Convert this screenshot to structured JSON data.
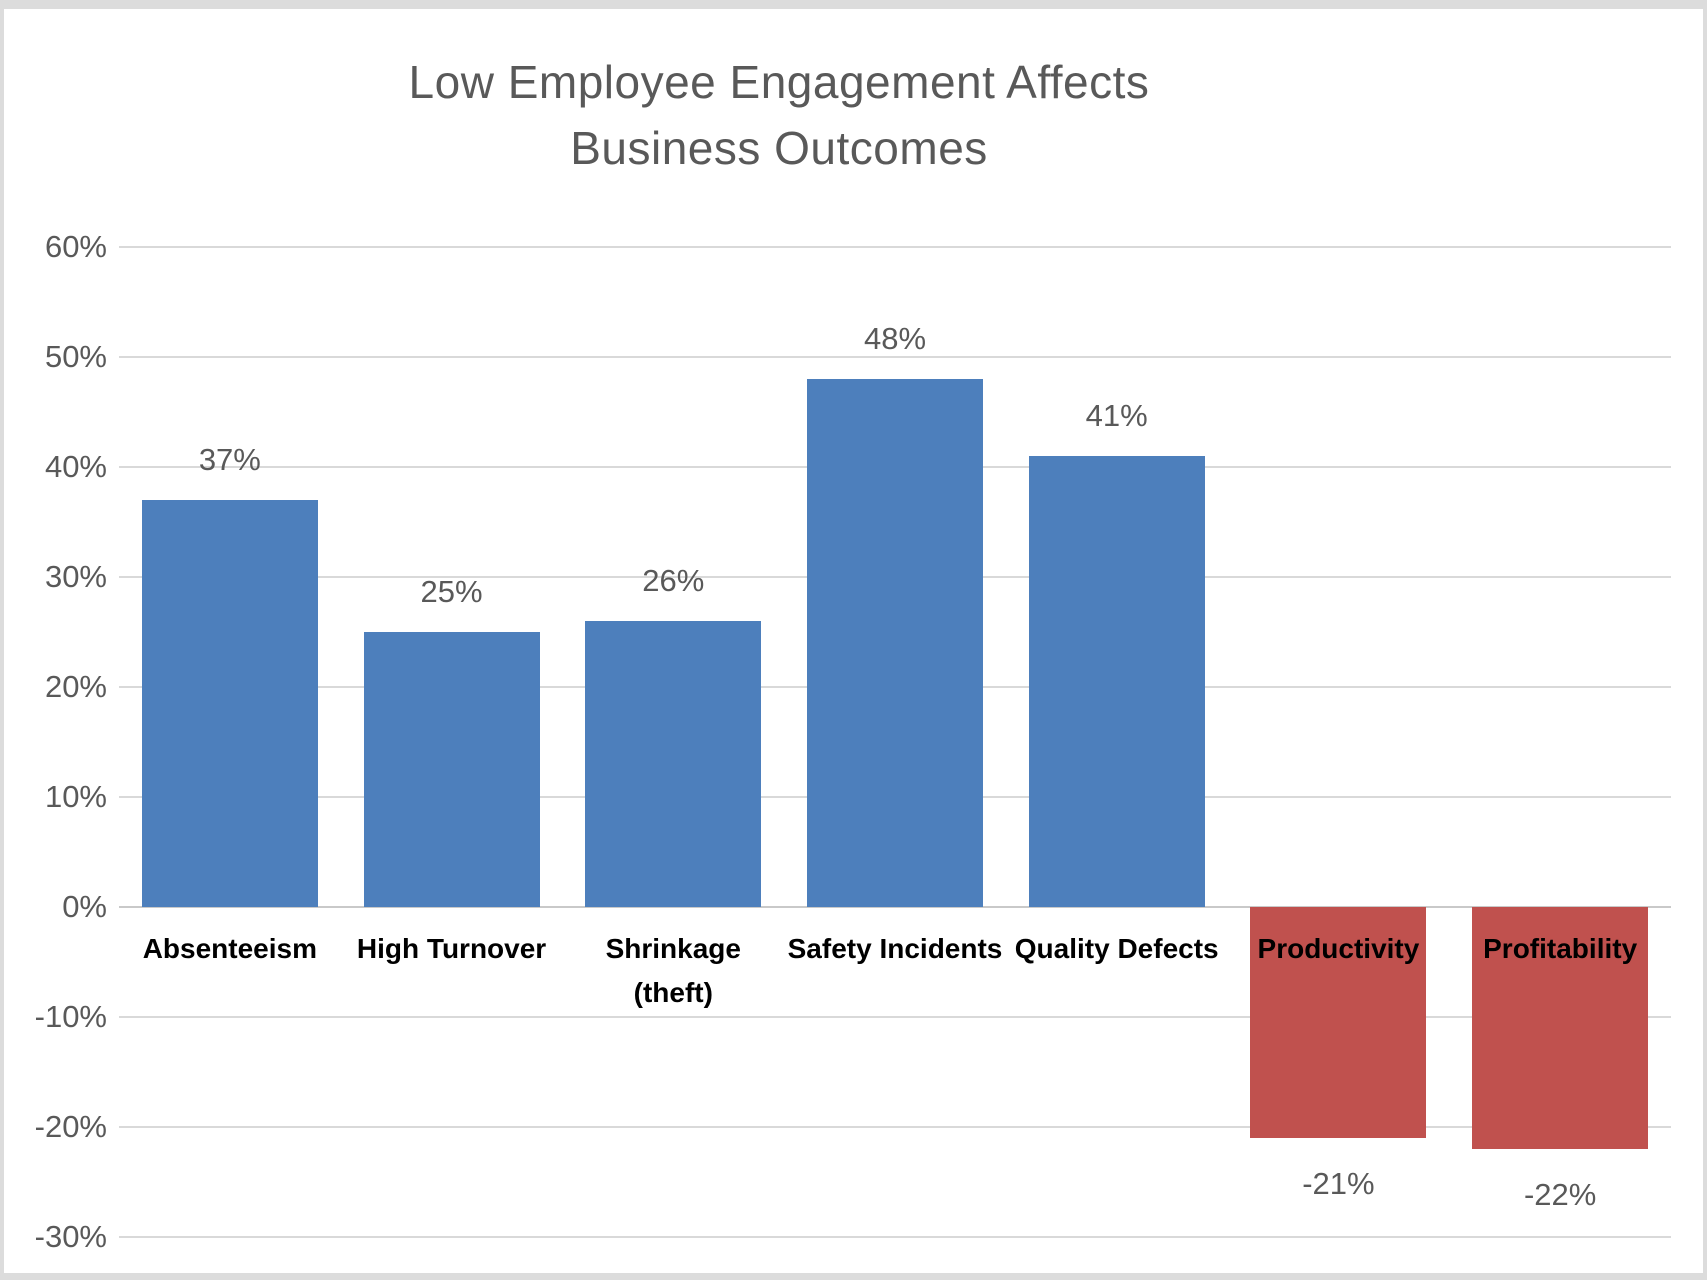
{
  "chart_data": {
    "type": "bar",
    "title": "Low Employee Engagement Affects Business Outcomes",
    "title_lines": [
      "Low Employee Engagement Affects",
      "Business Outcomes"
    ],
    "categories": [
      "Absenteeism",
      "High Turnover",
      "Shrinkage (theft)",
      "Safety Incidents",
      "Quality Defects",
      "Productivity",
      "Profitability"
    ],
    "category_lines": [
      [
        "Absenteeism"
      ],
      [
        "High Turnover"
      ],
      [
        "Shrinkage",
        "(theft)"
      ],
      [
        "Safety Incidents"
      ],
      [
        "Quality Defects"
      ],
      [
        "Productivity"
      ],
      [
        "Profitability"
      ]
    ],
    "values": [
      37,
      25,
      26,
      48,
      41,
      -21,
      -22
    ],
    "data_labels": [
      "37%",
      "25%",
      "26%",
      "48%",
      "41%",
      "-21%",
      "-22%"
    ],
    "y_axis": {
      "min": -30,
      "max": 60,
      "tick_interval": 10,
      "ticks": [
        "60%",
        "50%",
        "40%",
        "30%",
        "20%",
        "10%",
        "0%",
        "-10%",
        "-20%",
        "-30%"
      ],
      "tick_values": [
        60,
        50,
        40,
        30,
        20,
        10,
        0,
        -10,
        -20,
        -30
      ]
    },
    "grid": true,
    "legend": "none",
    "bar_color_positive": "#4d7fbc",
    "bar_color_negative": "#c0514e",
    "colors": {
      "title": "#595959",
      "tick_labels": "#595959",
      "data_labels": "#595959",
      "category_labels": "#000000",
      "gridlines": "#d9d9d9",
      "zero_axis": "#c9c9c9",
      "background": "#ffffff",
      "frame_border": "#dcdcdc"
    }
  }
}
